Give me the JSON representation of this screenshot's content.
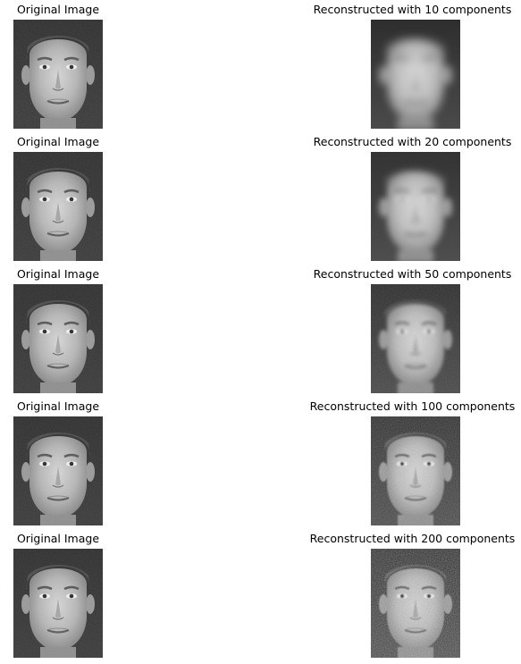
{
  "figure": {
    "rows": [
      {
        "left_title": "Original Image",
        "right_title": "Reconstructed with 10 components",
        "components": 10,
        "left_image": "original-face-image",
        "right_image": "reconstructed-face-image"
      },
      {
        "left_title": "Original Image",
        "right_title": "Reconstructed with 20 components",
        "components": 20,
        "left_image": "original-face-image",
        "right_image": "reconstructed-face-image"
      },
      {
        "left_title": "Original Image",
        "right_title": "Reconstructed with 50 components",
        "components": 50,
        "left_image": "original-face-image",
        "right_image": "reconstructed-face-image"
      },
      {
        "left_title": "Original Image",
        "right_title": "Reconstructed with 100 components",
        "components": 100,
        "left_image": "original-face-image",
        "right_image": "reconstructed-face-image"
      },
      {
        "left_title": "Original Image",
        "right_title": "Reconstructed with 200 components",
        "components": 200,
        "left_image": "original-face-image",
        "right_image": "reconstructed-face-image"
      }
    ]
  }
}
